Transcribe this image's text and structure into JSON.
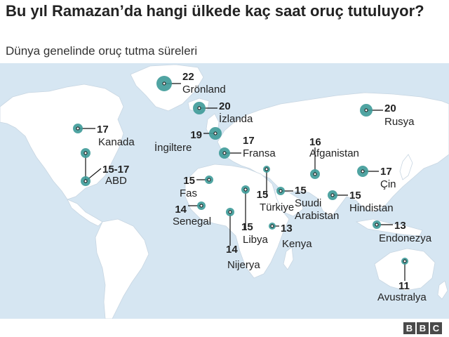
{
  "header": {
    "title": "Bu yıl Ramazan’da hangi ülkede kaç saat oruç tutuluyor?",
    "subtitle": "Dünya genelinde oruç tutma süreleri"
  },
  "colors": {
    "ocean": "#d6e6f2",
    "land": "#ffffff",
    "marker": "#3d9a98",
    "marker_dark": "#2a7a78",
    "text": "#222222"
  },
  "places": [
    {
      "id": "gronland",
      "name": "Grönland",
      "hours": "22"
    },
    {
      "id": "izlanda",
      "name": "İzlanda",
      "hours": "20"
    },
    {
      "id": "rusya",
      "name": "Rusya",
      "hours": "20"
    },
    {
      "id": "kanada",
      "name": "Kanada",
      "hours": "17"
    },
    {
      "id": "ingiltere",
      "name": "İngiltere",
      "hours": "19"
    },
    {
      "id": "fransa",
      "name": "Fransa",
      "hours": "17"
    },
    {
      "id": "afganistan",
      "name": "Afganistan",
      "hours": "16"
    },
    {
      "id": "abd",
      "name": "ABD",
      "hours": "15-17"
    },
    {
      "id": "cin",
      "name": "Çin",
      "hours": "17"
    },
    {
      "id": "fas",
      "name": "Fas",
      "hours": "15"
    },
    {
      "id": "turkiye",
      "name": "Türkiye",
      "hours": "15"
    },
    {
      "id": "suudi",
      "name": "Suudi\nArabistan",
      "hours": "15"
    },
    {
      "id": "hindistan",
      "name": "Hindistan",
      "hours": "15"
    },
    {
      "id": "senegal",
      "name": "Senegal",
      "hours": "14"
    },
    {
      "id": "libya",
      "name": "Libya",
      "hours": "15"
    },
    {
      "id": "kenya",
      "name": "Kenya",
      "hours": "13"
    },
    {
      "id": "endonezya",
      "name": "Endonezya",
      "hours": "13"
    },
    {
      "id": "nijerya",
      "name": "Nijerya",
      "hours": "14"
    },
    {
      "id": "avustralya",
      "name": "Avustralya",
      "hours": "11"
    }
  ],
  "brand": {
    "letters": [
      "B",
      "B",
      "C"
    ]
  }
}
